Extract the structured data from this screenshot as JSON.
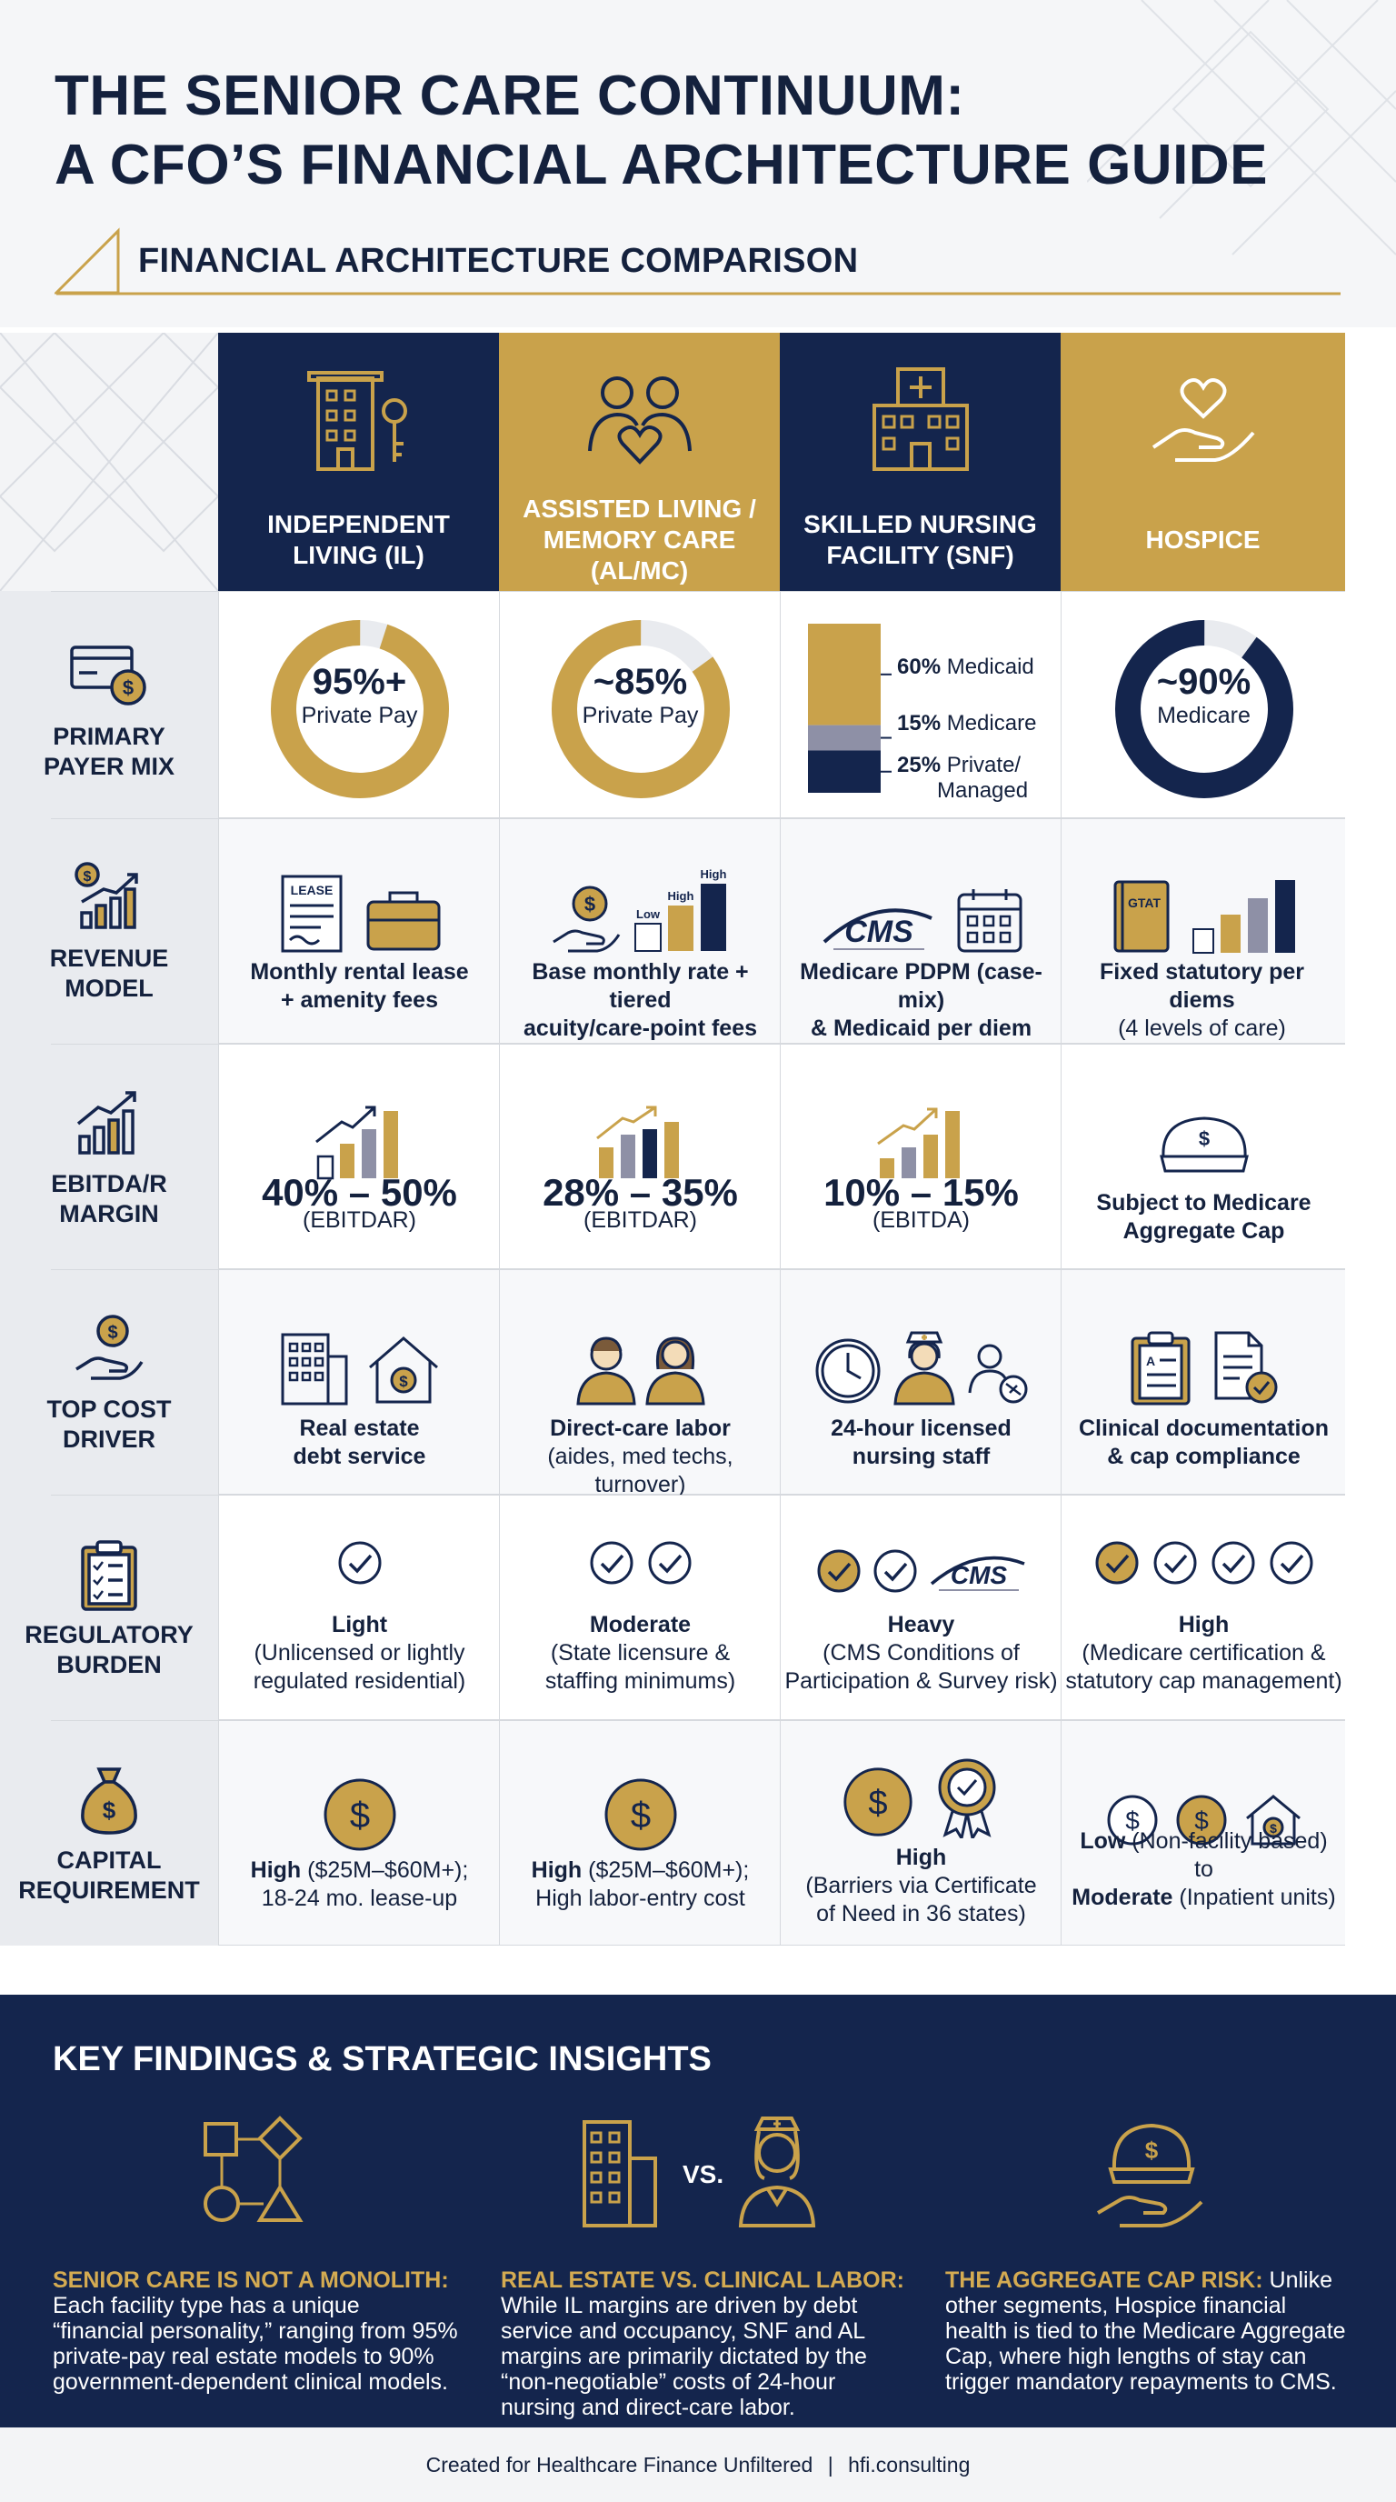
{
  "header": {
    "title_line1": "THE SENIOR CARE CONTINUUM:",
    "title_line2": "A CFO’S FINANCIAL ARCHITECTURE GUIDE",
    "subtitle": "FINANCIAL ARCHITECTURE COMPARISON"
  },
  "colors": {
    "navy": "#14254d",
    "gold": "#c9a24b",
    "gray": "#8e90a6",
    "light": "#e9ebef"
  },
  "columns": [
    {
      "label_line1": "INDEPENDENT",
      "label_line2": "LIVING (IL)",
      "icon": "building-key-icon"
    },
    {
      "label_line1": "ASSISTED LIVING /",
      "label_line2": "MEMORY CARE",
      "label_line3": "(AL/MC)",
      "icon": "two-people-heart-icon"
    },
    {
      "label_line1": "SKILLED NURSING",
      "label_line2": "FACILITY (SNF)",
      "icon": "hospital-icon"
    },
    {
      "label_line1": "HOSPICE",
      "icon": "hand-heart-icon"
    }
  ],
  "rows": {
    "payer_mix": {
      "label_line1": "PRIMARY",
      "label_line2": "PAYER MIX",
      "icon": "card-dollar-icon",
      "il": {
        "value": "95%+",
        "caption": "Private Pay",
        "fraction": 0.95
      },
      "al": {
        "value": "~85%",
        "caption": "Private Pay",
        "fraction": 0.85
      },
      "snf": {
        "segments": [
          {
            "pct": "60%",
            "name": "Medicaid",
            "fraction": 0.6
          },
          {
            "pct": "15%",
            "name": "Medicare",
            "fraction": 0.15
          },
          {
            "pct": "25%",
            "name_line1": "Private/",
            "name_line2": "Managed",
            "fraction": 0.25
          }
        ]
      },
      "hospice": {
        "value": "~90%",
        "caption": "Medicare",
        "fraction": 0.9
      }
    },
    "revenue_model": {
      "label_line1": "REVENUE",
      "label_line2": "MODEL",
      "icon": "growth-chart-dollar-icon",
      "il": {
        "line1": "Monthly rental lease",
        "line2": "+ amenity fees",
        "doc_label": "LEASE"
      },
      "al": {
        "line1": "Base monthly rate + tiered",
        "line2": "acuity/care-point fees",
        "bar_low": "Low",
        "bar_high1": "High",
        "bar_high2": "High"
      },
      "snf": {
        "line1": "Medicare PDPM (case-mix)",
        "line2": "& Medicaid per diem",
        "logo": "CMS"
      },
      "hospice": {
        "line1": "Fixed statutory per diems",
        "line2": "(4 levels of care)",
        "book_label": "GTAT"
      }
    },
    "ebitda": {
      "label_line1": "EBITDA/R",
      "label_line2": "MARGIN",
      "icon": "bar-chart-icon",
      "il": {
        "value": "40% – 50%",
        "caption": "(EBITDAR)"
      },
      "al": {
        "value": "28% – 35%",
        "caption": "(EBITDAR)"
      },
      "snf": {
        "value": "10% – 15%",
        "caption": "(EBITDA)"
      },
      "hospice": {
        "line1": "Subject to Medicare",
        "line2": "Aggregate Cap"
      }
    },
    "cost_driver": {
      "label_line1": "TOP COST",
      "label_line2": "DRIVER",
      "icon": "hand-coin-icon",
      "il": {
        "line1": "Real estate",
        "line2": "debt service"
      },
      "al": {
        "line1": "Direct-care labor",
        "line2": "(aides, med techs, turnover)"
      },
      "snf": {
        "line1": "24-hour licensed",
        "line2": "nursing staff"
      },
      "hospice": {
        "line1": "Clinical documentation",
        "line2": "& cap compliance"
      }
    },
    "regulatory": {
      "label_line1": "REGULATORY",
      "label_line2": "BURDEN",
      "icon": "clipboard-checklist-icon",
      "il": {
        "level": "Light",
        "line1": "(Unlicensed or lightly",
        "line2": "regulated residential)",
        "checks": 1
      },
      "al": {
        "level": "Moderate",
        "line1": "(State licensure &",
        "line2": "staffing minimums)",
        "checks": 2
      },
      "snf": {
        "level": "Heavy",
        "line1": "(CMS Conditions of",
        "line2": "Participation & Survey risk)",
        "checks": 2,
        "logo": "CMS"
      },
      "hospice": {
        "level": "High",
        "line1": "(Medicare certification &",
        "line2": "statutory cap management)",
        "checks": 4
      }
    },
    "capital": {
      "label_line1": "CAPITAL",
      "label_line2": "REQUIREMENT",
      "icon": "money-bag-icon",
      "il": {
        "level": "High",
        "line1_rest": " ($25M–$60M+);",
        "line2": "18-24 mo. lease-up"
      },
      "al": {
        "level": "High",
        "line1_rest": " ($25M–$60M+);",
        "line2": "High labor-entry cost"
      },
      "snf": {
        "level": "High",
        "line1": "(Barriers via Certificate",
        "line2": "of Need in 36 states)"
      },
      "hospice": {
        "level_low": "Low",
        "line1_rest": " (Non-facility based)",
        "line2": "to",
        "level_mod": "Moderate",
        "line3_rest": " (Inpatient units)"
      }
    }
  },
  "findings": {
    "title": "KEY FINDINGS & STRATEGIC INSIGHTS",
    "items": [
      {
        "icon": "shapes-icon",
        "heading": "SENIOR CARE IS NOT A MONOLITH:",
        "lines": [
          "Each facility type has a unique",
          "“financial personality,” ranging from 95%",
          "private-pay real estate models to 90%",
          "government-dependent clinical models."
        ]
      },
      {
        "icon": "building-vs-nurse-icon",
        "vs": "VS.",
        "heading": "REAL ESTATE VS. CLINICAL LABOR:",
        "lines": [
          "While IL margins are driven by debt",
          "service and occupancy, SNF and AL",
          "margins are primarily dictated by the",
          "“non-negotiable” costs of 24-hour",
          "nursing and direct-care labor."
        ]
      },
      {
        "icon": "cap-hand-icon",
        "heading": "THE AGGREGATE CAP RISK:",
        "heading_rest": " Unlike",
        "lines": [
          "other segments, Hospice financial",
          "health is tied to the Medicare Aggregate",
          "Cap, where high lengths of stay can",
          "trigger mandatory repayments to CMS."
        ]
      }
    ]
  },
  "footer": {
    "left": "Created for Healthcare Finance Unfiltered",
    "sep": "|",
    "right": "hfi.consulting"
  }
}
